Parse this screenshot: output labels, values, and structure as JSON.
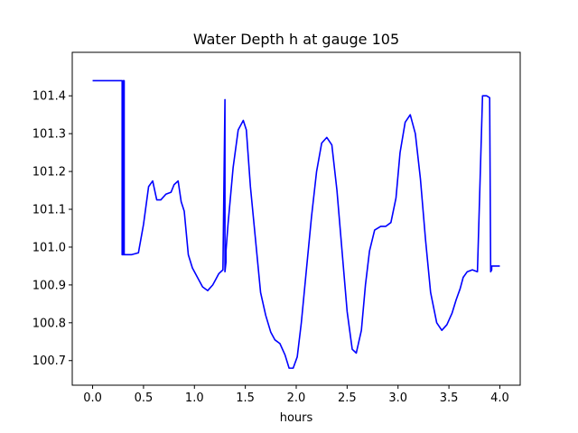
{
  "chart_data": {
    "type": "line",
    "title": "Water Depth h at gauge 105",
    "xlabel": "hours",
    "ylabel": "",
    "xlim": [
      -0.2,
      4.2
    ],
    "ylim": [
      100.635,
      101.515
    ],
    "xticks": [
      0.0,
      0.5,
      1.0,
      1.5,
      2.0,
      2.5,
      3.0,
      3.5,
      4.0
    ],
    "xtick_labels": [
      "0.0",
      "0.5",
      "1.0",
      "1.5",
      "2.0",
      "2.5",
      "3.0",
      "3.5",
      "4.0"
    ],
    "yticks": [
      100.7,
      100.8,
      100.9,
      101.0,
      101.1,
      101.2,
      101.3,
      101.4
    ],
    "ytick_labels": [
      "100.7",
      "100.8",
      "100.9",
      "101.0",
      "101.1",
      "101.2",
      "101.3",
      "101.4"
    ],
    "grid": false,
    "series": [
      {
        "color": "#0000ff",
        "x": [
          0.0,
          0.28,
          0.29,
          0.29,
          0.3,
          0.3,
          0.31,
          0.31,
          0.38,
          0.45,
          0.5,
          0.55,
          0.59,
          0.63,
          0.67,
          0.72,
          0.77,
          0.8,
          0.84,
          0.87,
          0.9,
          0.94,
          0.98,
          1.03,
          1.08,
          1.13,
          1.18,
          1.21,
          1.24,
          1.28,
          1.3,
          1.3,
          1.31,
          1.31,
          1.33,
          1.38,
          1.43,
          1.48,
          1.51,
          1.55,
          1.6,
          1.65,
          1.7,
          1.75,
          1.79,
          1.84,
          1.89,
          1.93,
          1.97,
          2.01,
          2.05,
          2.1,
          2.15,
          2.2,
          2.25,
          2.3,
          2.35,
          2.4,
          2.45,
          2.5,
          2.55,
          2.59,
          2.64,
          2.68,
          2.72,
          2.77,
          2.83,
          2.88,
          2.93,
          2.98,
          3.02,
          3.07,
          3.12,
          3.17,
          3.22,
          3.27,
          3.32,
          3.38,
          3.43,
          3.48,
          3.53,
          3.57,
          3.61,
          3.64,
          3.68,
          3.73,
          3.78,
          3.83,
          3.87,
          3.9,
          3.91,
          3.91,
          3.92,
          3.92,
          3.93,
          3.94,
          3.94,
          3.96,
          3.98,
          4.0
        ],
        "y": [
          101.44,
          101.44,
          101.44,
          100.98,
          100.98,
          101.44,
          101.44,
          100.98,
          100.98,
          100.985,
          101.06,
          101.16,
          101.175,
          101.125,
          101.125,
          101.14,
          101.145,
          101.165,
          101.175,
          101.12,
          101.095,
          100.98,
          100.945,
          100.92,
          100.895,
          100.885,
          100.9,
          100.915,
          100.93,
          100.94,
          101.39,
          100.935,
          100.96,
          100.99,
          101.06,
          101.21,
          101.31,
          101.335,
          101.31,
          101.16,
          101.02,
          100.88,
          100.82,
          100.775,
          100.755,
          100.745,
          100.715,
          100.68,
          100.68,
          100.71,
          100.8,
          100.94,
          101.08,
          101.2,
          101.275,
          101.29,
          101.27,
          101.15,
          100.99,
          100.83,
          100.73,
          100.72,
          100.78,
          100.9,
          100.99,
          101.045,
          101.055,
          101.055,
          101.065,
          101.13,
          101.25,
          101.33,
          101.35,
          101.3,
          101.18,
          101.02,
          100.88,
          100.8,
          100.78,
          100.795,
          100.825,
          100.86,
          100.89,
          100.92,
          100.935,
          100.94,
          100.935,
          101.4,
          101.4,
          101.395,
          100.935,
          100.935,
          100.94,
          100.95,
          100.95,
          100.95,
          100.95,
          100.95,
          100.95,
          100.95
        ]
      }
    ]
  }
}
